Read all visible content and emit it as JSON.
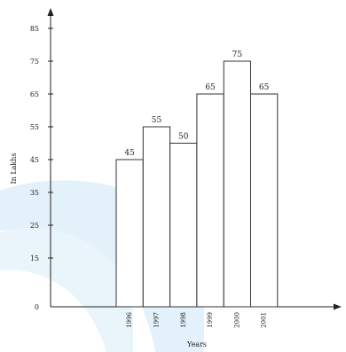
{
  "chart_data": {
    "type": "bar",
    "categories": [
      "1996",
      "1997",
      "1998",
      "1999",
      "2000",
      "2001"
    ],
    "values": [
      45,
      55,
      50,
      65,
      75,
      65
    ],
    "data_labels": [
      "45",
      "55",
      "50",
      "65",
      "75",
      "65"
    ],
    "ytick_labels": [
      "0",
      "15",
      "25",
      "35",
      "45",
      "55",
      "65",
      "75",
      "85"
    ],
    "ytick_values": [
      0,
      15,
      25,
      35,
      45,
      55,
      65,
      75,
      85
    ],
    "xlabel": "Years",
    "ylabel": "In Lakhs",
    "ylim": [
      0,
      90
    ],
    "grid": false,
    "bar_fill": "#ffffff",
    "bar_stroke": "#333333"
  }
}
